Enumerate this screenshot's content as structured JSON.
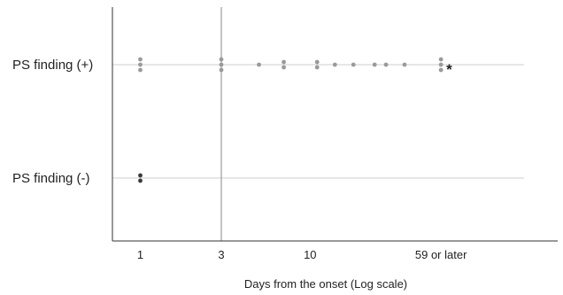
{
  "chart_data": {
    "type": "scatter",
    "title": "",
    "xlabel": "Days from the onset  (Log scale)",
    "ylabel": "",
    "x_scale": "log",
    "xlim": [
      0.75,
      65
    ],
    "categories": [
      "PS finding (+)",
      "PS finding (-)"
    ],
    "x_ticks": [
      {
        "value": 1,
        "label": "1"
      },
      {
        "value": 3,
        "label": "3"
      },
      {
        "value": 10,
        "label": "10"
      },
      {
        "value": 59,
        "label": "59 or later"
      }
    ],
    "reference_line_x": 3,
    "grid": "horizontal lines at each category",
    "colors": {
      "positive": "#9a9a9a",
      "negative": "#3a3a3a",
      "axis": "#333333",
      "gridline": "#cfcfcf"
    },
    "series": [
      {
        "category": "PS finding (+)",
        "points": [
          {
            "x": 1,
            "count": 3
          },
          {
            "x": 3,
            "count": 3
          },
          {
            "x": 5,
            "count": 1
          },
          {
            "x": 7,
            "count": 2
          },
          {
            "x": 11,
            "count": 2
          },
          {
            "x": 14,
            "count": 1
          },
          {
            "x": 18,
            "count": 1
          },
          {
            "x": 24,
            "count": 1
          },
          {
            "x": 28,
            "count": 1
          },
          {
            "x": 36,
            "count": 1
          },
          {
            "x": 59,
            "count": 3
          }
        ]
      },
      {
        "category": "PS finding (-)",
        "points": [
          {
            "x": 1,
            "count": 2
          }
        ]
      }
    ],
    "annotations": [
      {
        "text": "*",
        "x": 59,
        "category": "PS finding (+)"
      }
    ]
  }
}
